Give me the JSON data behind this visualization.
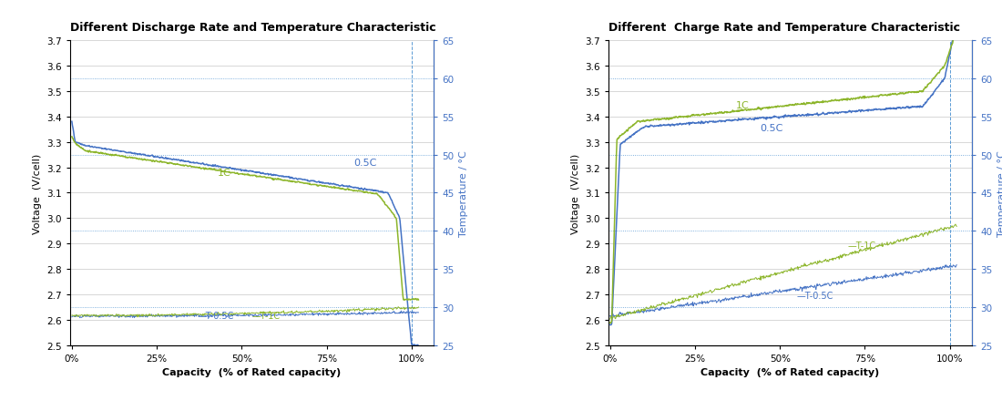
{
  "title_left": "Different Discharge Rate and Temperature Characteristic",
  "title_right": "Different  Charge Rate and Temperature Characteristic",
  "xlabel": "Capacity  (% of Rated capacity)",
  "ylabel_left": "Voltage  (V/cell)",
  "ylabel_right": "Temperature / °C",
  "voltage_ylim": [
    2.5,
    3.7
  ],
  "voltage_yticks": [
    2.5,
    2.6,
    2.7,
    2.8,
    2.9,
    3.0,
    3.1,
    3.2,
    3.3,
    3.4,
    3.5,
    3.6,
    3.7
  ],
  "temp_ylim": [
    25,
    65
  ],
  "temp_yticks": [
    25,
    30,
    35,
    40,
    45,
    50,
    55,
    60,
    65
  ],
  "temp_dotted_lines": [
    30,
    40,
    50,
    60
  ],
  "x_ticks": [
    0,
    25,
    50,
    75,
    100
  ],
  "colors": {
    "blue": "#4472C4",
    "green_yellow": "#8CB52A",
    "gray_grid": "#C0C0C0",
    "blue_dotted": "#5B9BD5",
    "temp_label_color": "#4472C4"
  }
}
